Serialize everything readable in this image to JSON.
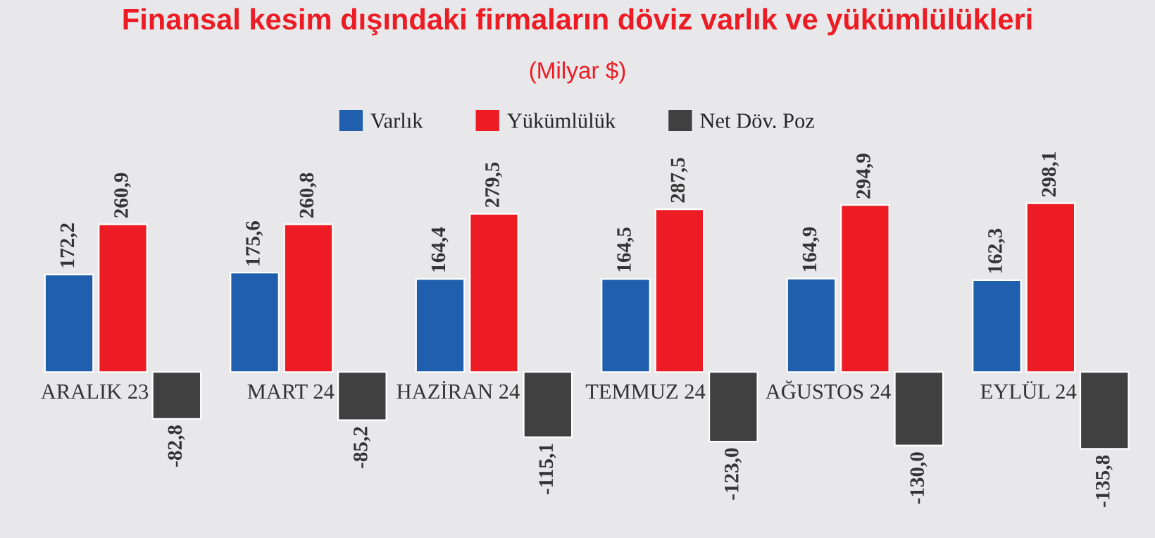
{
  "chart_data": {
    "type": "bar",
    "title": "Finansal kesim dışındaki firmaların döviz varlık ve yükümlülükleri",
    "subtitle": "(Milyar $)",
    "categories": [
      "ARALIK 23",
      "MART 24",
      "HAZİRAN 24",
      "TEMMUZ 24",
      "AĞUSTOS 24",
      "EYLÜL 24"
    ],
    "series": [
      {
        "name": "Varlık",
        "color": "#1f5fad",
        "values": [
          172.2,
          175.6,
          164.4,
          164.5,
          164.9,
          162.3
        ],
        "value_labels": [
          "172,2",
          "175,6",
          "164,4",
          "164,5",
          "164,9",
          "162,3"
        ]
      },
      {
        "name": "Yükümlülük",
        "color": "#ed1c24",
        "values": [
          260.9,
          260.8,
          279.5,
          287.5,
          294.9,
          298.1
        ],
        "value_labels": [
          "260,9",
          "260,8",
          "279,5",
          "287,5",
          "294,9",
          "298,1"
        ]
      },
      {
        "name": "Net Döv. Poz",
        "color": "#404040",
        "values": [
          -82.8,
          -85.2,
          -115.1,
          -123.0,
          -130.0,
          -135.8
        ],
        "value_labels": [
          "-82,8",
          "-85,2",
          "-115,1",
          "-123,0",
          "-130,0",
          "-135,8"
        ]
      }
    ],
    "legend": "top"
  }
}
